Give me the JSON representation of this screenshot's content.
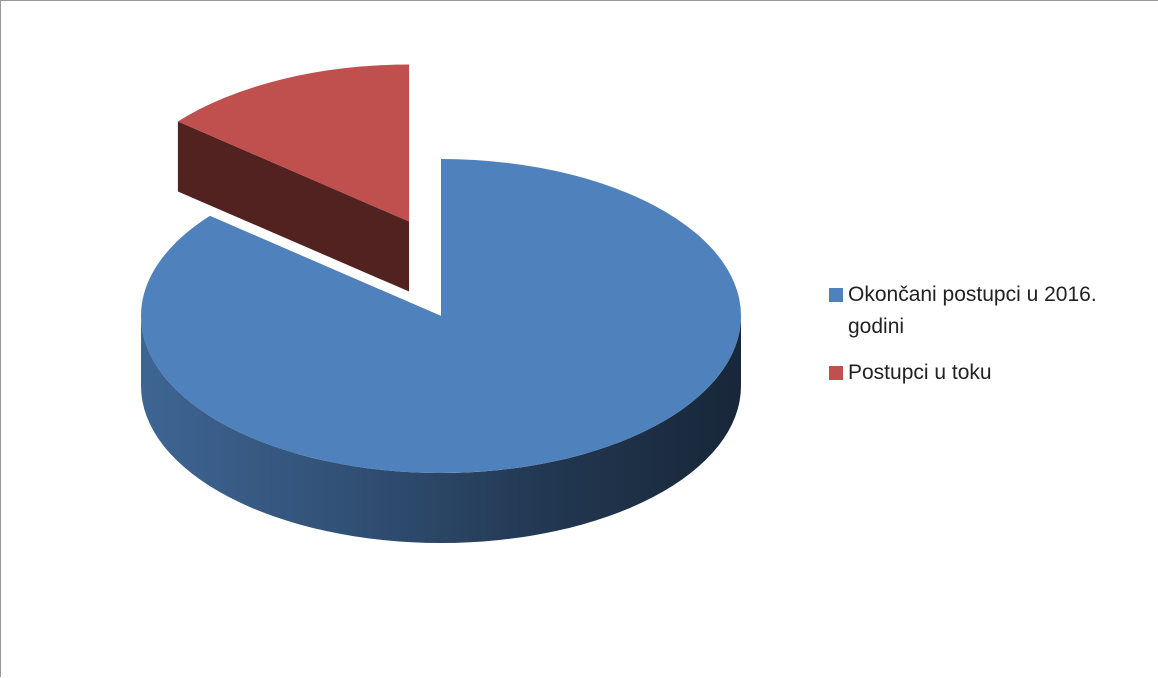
{
  "chart_data": {
    "type": "pie",
    "title": "",
    "style": "3d-exploded",
    "legend_position": "right",
    "slices": [
      {
        "name": "Okončani postupci u 2016. godini",
        "value": 86,
        "color": "#4f81bd"
      },
      {
        "name": "Postupci u toku",
        "value": 14,
        "color": "#c0504d"
      }
    ]
  },
  "legend": {
    "items": [
      {
        "label": "Okončani postupci u 2016. godini",
        "color": "#4f81bd"
      },
      {
        "label": "Postupci u toku",
        "color": "#c0504d"
      }
    ]
  }
}
